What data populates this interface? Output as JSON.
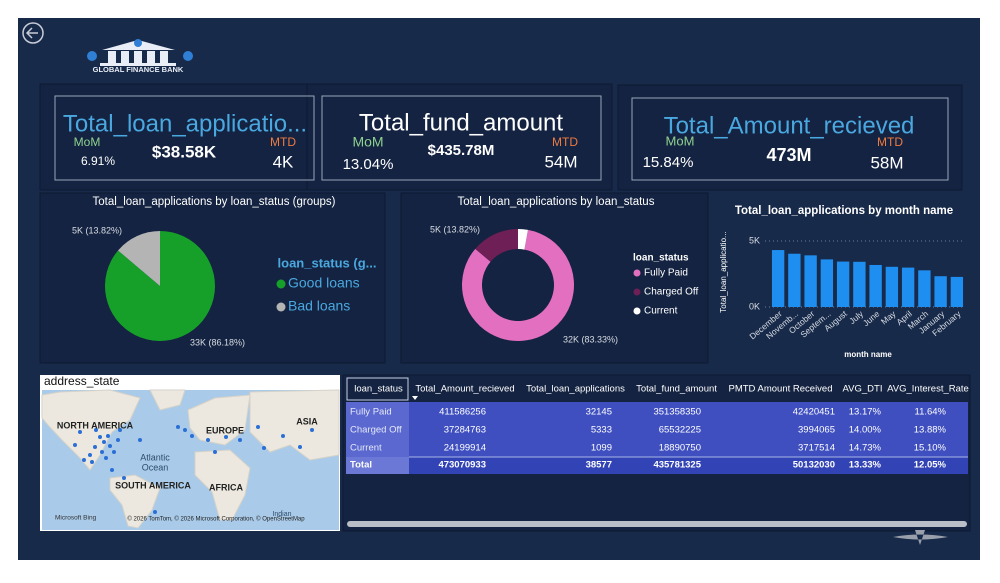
{
  "logo_text": "GLOBAL FINANCE BANK",
  "kpis": [
    {
      "title": "Total_loan_applicatio...",
      "mom_label": "MoM",
      "mom": "6.91%",
      "value": "$38.58K",
      "mtd_label": "MTD",
      "mtd": "4K"
    },
    {
      "title": "Total_fund_amount",
      "mom_label": "MoM",
      "mom": "13.04%",
      "value": "$435.78M",
      "mtd_label": "MTD",
      "mtd": "54M"
    },
    {
      "title": "Total_Amount_recieved",
      "mom_label": "MoM",
      "mom": "15.84%",
      "value": "473M",
      "mtd_label": "MTD",
      "mtd": "58M"
    }
  ],
  "chart_data": [
    {
      "type": "pie",
      "title": "Total_loan_applications by loan_status (groups)",
      "legend_title": "loan_status (g...",
      "categories": [
        "Good loans",
        "Bad loans"
      ],
      "values": [
        86.18,
        13.82
      ],
      "value_labels": [
        "33K (86.18%)",
        "5K (13.82%)"
      ],
      "colors": [
        "#16a02a",
        "#b4b4b4"
      ]
    },
    {
      "type": "donut",
      "title": "Total_loan_applications by loan_status",
      "legend_title": "loan_status",
      "categories": [
        "Fully Paid",
        "Charged Off",
        "Current"
      ],
      "values": [
        83.33,
        13.82,
        2.85
      ],
      "value_labels": [
        "32K (83.33%)",
        "5K (13.82%)",
        null
      ],
      "colors": [
        "#e36fc0",
        "#6e1f55",
        "#ffffff"
      ]
    },
    {
      "type": "bar",
      "title": "Total_loan_applications by month name",
      "x_label": "month name",
      "y_label": "Total_loan_applicatio...",
      "categories": [
        "December",
        "Novemb...",
        "October",
        "Septem...",
        "August",
        "July",
        "June",
        "May",
        "April",
        "March",
        "January",
        "February"
      ],
      "values": [
        4314,
        4035,
        3914,
        3607,
        3441,
        3424,
        3184,
        3044,
        2985,
        2777,
        2332,
        2279
      ],
      "color": "#1e8ff0",
      "ylim": [
        0,
        5000
      ],
      "yticks": [
        {
          "value": 0,
          "label": "0K"
        },
        {
          "value": 5000,
          "label": "5K"
        }
      ],
      "grid": true
    }
  ],
  "map": {
    "title": "address_state",
    "labels": [
      "NORTH AMERICA",
      "EUROPE",
      "ASIA",
      "Atlantic",
      "Ocean",
      "AFRICA",
      "SOUTH AMERICA",
      "Indian"
    ],
    "attribution": "Microsoft Bing",
    "copyright": "© 2026 TomTom, © 2026 Microsoft Corporation, © OpenStreetMap"
  },
  "table": {
    "columns": [
      "loan_status",
      "Total_Amount_recieved",
      "Total_loan_applications",
      "Total_fund_amount",
      "PMTD Amount Received",
      "AVG_DTI",
      "AVG_Interest_Rate"
    ],
    "rows": [
      [
        "Fully Paid",
        411586256,
        32145,
        351358350,
        42420451,
        "13.17%",
        "11.64%"
      ],
      [
        "Charged Off",
        37284763,
        5333,
        65532225,
        3994065,
        "14.00%",
        "13.88%"
      ],
      [
        "Current",
        24199914,
        1099,
        18890750,
        3717514,
        "14.73%",
        "15.10%"
      ]
    ],
    "total": [
      "Total",
      473070933,
      38577,
      435781325,
      50132030,
      "13.33%",
      "12.05%"
    ]
  }
}
